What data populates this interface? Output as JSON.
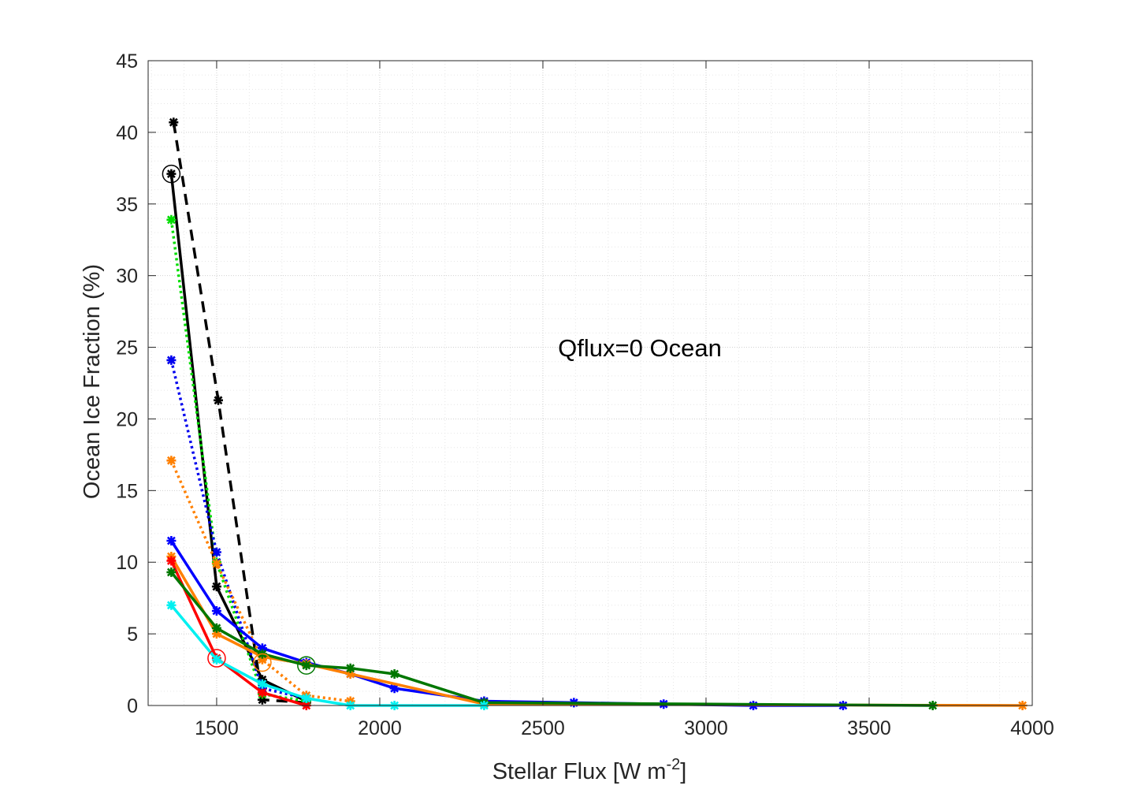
{
  "chart_data": {
    "type": "line",
    "title": "",
    "xlabel": "Stellar Flux [W m",
    "xlabel_sup": "-2",
    "xlabel_end": "]",
    "ylabel": "Ocean Ice Fraction (%)",
    "annotation": "Qflux=0 Ocean",
    "xlim": [
      1290,
      4000
    ],
    "ylim": [
      0,
      45
    ],
    "xticks": [
      1500,
      2000,
      2500,
      3000,
      3500,
      4000
    ],
    "yticks": [
      0,
      5,
      10,
      15,
      20,
      25,
      30,
      35,
      40,
      45
    ],
    "grid": "major and minor, dotted",
    "series": [
      {
        "name": "black-dashed",
        "color": "#000000",
        "style": "dashed",
        "x": [
          1368,
          1505,
          1640,
          1775
        ],
        "y": [
          40.7,
          21.3,
          0.4,
          0.2
        ]
      },
      {
        "name": "black-solid",
        "color": "#000000",
        "style": "solid",
        "x": [
          1361,
          1500,
          1640,
          1775
        ],
        "y": [
          37.1,
          8.3,
          1.8,
          0.3
        ]
      },
      {
        "name": "green-dotted",
        "color": "#00dd00",
        "style": "dotted",
        "x": [
          1361,
          1500,
          1640,
          1775
        ],
        "y": [
          33.9,
          10.0,
          0.8,
          0.3
        ]
      },
      {
        "name": "blue-dotted",
        "color": "#0000ee",
        "style": "dotted",
        "x": [
          1361,
          1500,
          1640,
          1775
        ],
        "y": [
          24.1,
          10.7,
          1.2,
          0.5
        ]
      },
      {
        "name": "orange-dotted",
        "color": "#ff8000",
        "style": "dotted",
        "x": [
          1361,
          1500,
          1640,
          1775,
          1910
        ],
        "y": [
          17.1,
          9.9,
          3.2,
          0.7,
          0.3
        ]
      },
      {
        "name": "blue-solid",
        "color": "#0000ff",
        "style": "solid",
        "x": [
          1361,
          1500,
          1640,
          1775,
          1910,
          2045,
          2320,
          2595,
          2870,
          3145,
          3420
        ],
        "y": [
          11.5,
          6.6,
          4.0,
          3.0,
          2.2,
          1.2,
          0.3,
          0.2,
          0.1,
          0.0,
          0.0
        ]
      },
      {
        "name": "orange-solid",
        "color": "#ff8000",
        "style": "solid",
        "x": [
          1361,
          1500,
          1640,
          1775,
          1910,
          2320,
          3970
        ],
        "y": [
          10.4,
          5.0,
          3.4,
          2.9,
          2.2,
          0.1,
          0.0
        ]
      },
      {
        "name": "red-solid",
        "color": "#ff0000",
        "style": "solid",
        "x": [
          1361,
          1500,
          1640,
          1775
        ],
        "y": [
          10.1,
          3.3,
          0.9,
          0.0
        ]
      },
      {
        "name": "green-solid",
        "color": "#007700",
        "style": "solid",
        "x": [
          1361,
          1500,
          1640,
          1775,
          1910,
          2045,
          2320,
          3695
        ],
        "y": [
          9.3,
          5.4,
          3.6,
          2.8,
          2.6,
          2.2,
          0.2,
          0.0
        ]
      },
      {
        "name": "cyan-solid",
        "color": "#00f0f0",
        "style": "solid",
        "x": [
          1361,
          1500,
          1640,
          1775,
          1910,
          2045,
          2320
        ],
        "y": [
          7.0,
          3.2,
          1.5,
          0.5,
          0.0,
          0.0,
          0.0
        ]
      }
    ],
    "circles": [
      {
        "name": "black-circle",
        "color": "#000000",
        "x": 1361,
        "y": 37.1
      },
      {
        "name": "red-circle",
        "color": "#ff0000",
        "x": 1500,
        "y": 3.3
      },
      {
        "name": "orange-circle",
        "color": "#ff8000",
        "x": 1640,
        "y": 3.0
      },
      {
        "name": "green-circle",
        "color": "#007700",
        "x": 1775,
        "y": 2.8
      }
    ]
  }
}
